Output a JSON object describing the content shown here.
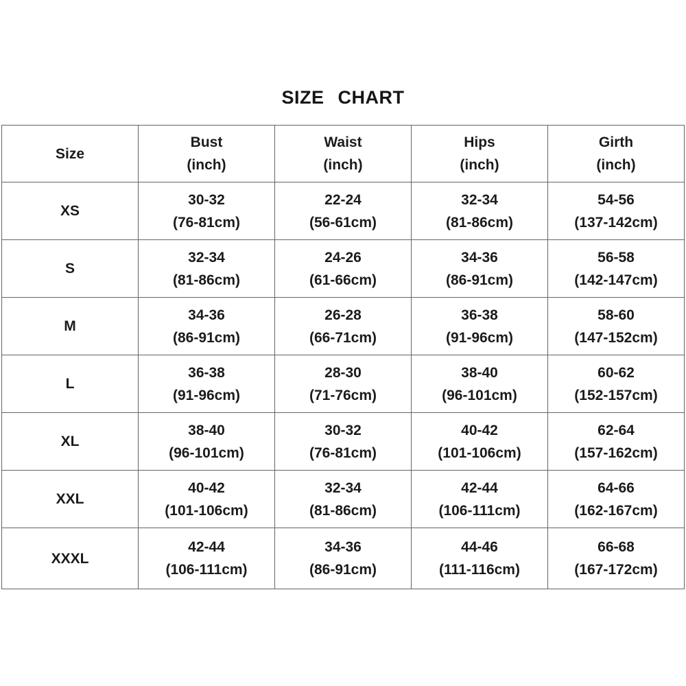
{
  "page": {
    "title": "SIZE CHART"
  },
  "colors": {
    "text": "#1b1b1b",
    "border": "#646464",
    "background": "#ffffff"
  },
  "chart_data": {
    "type": "table",
    "title": "SIZE CHART",
    "columns": [
      "Size",
      "Bust (inch)",
      "Waist (inch)",
      "Hips (inch)",
      "Girth (inch)"
    ],
    "rows": [
      [
        "XS",
        "30-32 (76-81cm)",
        "22-24 (56-61cm)",
        "32-34 (81-86cm)",
        "54-56 (137-142cm)"
      ],
      [
        "S",
        "32-34 (81-86cm)",
        "24-26 (61-66cm)",
        "34-36 (86-91cm)",
        "56-58 (142-147cm)"
      ],
      [
        "M",
        "34-36 (86-91cm)",
        "26-28 (66-71cm)",
        "36-38 (91-96cm)",
        "58-60 (147-152cm)"
      ],
      [
        "L",
        "36-38 (91-96cm)",
        "28-30 (71-76cm)",
        "38-40 (96-101cm)",
        "60-62 (152-157cm)"
      ],
      [
        "XL",
        "38-40 (96-101cm)",
        "30-32 (76-81cm)",
        "40-42 (101-106cm)",
        "62-64 (157-162cm)"
      ],
      [
        "XXL",
        "40-42 (101-106cm)",
        "32-34 (81-86cm)",
        "42-44 (106-111cm)",
        "64-66 (162-167cm)"
      ],
      [
        "XXXL",
        "42-44 (106-111cm)",
        "34-36 (86-91cm)",
        "44-46 (111-116cm)",
        "66-68 (167-172cm)"
      ]
    ]
  },
  "table": {
    "columns": [
      {
        "label": "Size",
        "unit": ""
      },
      {
        "label": "Bust",
        "unit": "(inch)"
      },
      {
        "label": "Waist",
        "unit": "(inch)"
      },
      {
        "label": "Hips",
        "unit": "(inch)"
      },
      {
        "label": "Girth",
        "unit": "(inch)"
      }
    ],
    "rows": [
      {
        "size": "XS",
        "bust": "30-32",
        "bust_cm": "(76-81cm)",
        "waist": "22-24",
        "waist_cm": "(56-61cm)",
        "hips": "32-34",
        "hips_cm": "(81-86cm)",
        "girth": "54-56",
        "girth_cm": "(137-142cm)"
      },
      {
        "size": "S",
        "bust": "32-34",
        "bust_cm": "(81-86cm)",
        "waist": "24-26",
        "waist_cm": "(61-66cm)",
        "hips": "34-36",
        "hips_cm": "(86-91cm)",
        "girth": "56-58",
        "girth_cm": "(142-147cm)"
      },
      {
        "size": "M",
        "bust": "34-36",
        "bust_cm": "(86-91cm)",
        "waist": "26-28",
        "waist_cm": "(66-71cm)",
        "hips": "36-38",
        "hips_cm": "(91-96cm)",
        "girth": "58-60",
        "girth_cm": "(147-152cm)"
      },
      {
        "size": "L",
        "bust": "36-38",
        "bust_cm": "(91-96cm)",
        "waist": "28-30",
        "waist_cm": "(71-76cm)",
        "hips": "38-40",
        "hips_cm": "(96-101cm)",
        "girth": "60-62",
        "girth_cm": "(152-157cm)"
      },
      {
        "size": "XL",
        "bust": "38-40",
        "bust_cm": "(96-101cm)",
        "waist": "30-32",
        "waist_cm": "(76-81cm)",
        "hips": "40-42",
        "hips_cm": "(101-106cm)",
        "girth": "62-64",
        "girth_cm": "(157-162cm)"
      },
      {
        "size": "XXL",
        "bust": "40-42",
        "bust_cm": "(101-106cm)",
        "waist": "32-34",
        "waist_cm": "(81-86cm)",
        "hips": "42-44",
        "hips_cm": "(106-111cm)",
        "girth": "64-66",
        "girth_cm": "(162-167cm)"
      },
      {
        "size": "XXXL",
        "bust": "42-44",
        "bust_cm": "(106-111cm)",
        "waist": "34-36",
        "waist_cm": "(86-91cm)",
        "hips": "44-46",
        "hips_cm": "(111-116cm)",
        "girth": "66-68",
        "girth_cm": "(167-172cm)"
      }
    ]
  }
}
